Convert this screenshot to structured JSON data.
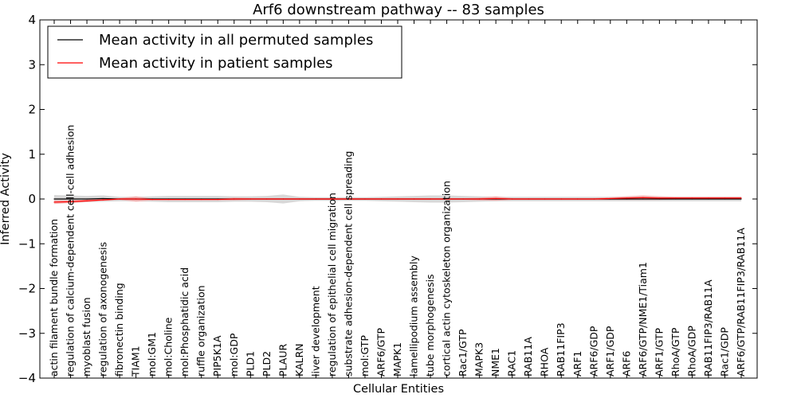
{
  "chart_data": {
    "type": "line",
    "title": "Arf6 downstream pathway -- 83 samples",
    "xlabel": "Cellular Entities",
    "ylabel": "Inferred Activity",
    "ylim": [
      -4,
      4
    ],
    "yticks": [
      4,
      3,
      2,
      1,
      0,
      -1,
      -2,
      -3,
      -4
    ],
    "ytick_labels": [
      "4",
      "3",
      "2",
      "1",
      "0",
      "−1",
      "−2",
      "−3",
      "−4"
    ],
    "grid": false,
    "legend_position": "top-left",
    "categories": [
      "actin filament bundle formation",
      "regulation of calcium-dependent cell-cell adhesion",
      "myoblast fusion",
      "regulation of axonogenesis",
      "fibronectin binding",
      "TIAM1",
      "mol:GM1",
      "mol:Choline",
      "mol:Phosphatidic acid",
      "ruffle organization",
      "PIP5K1A",
      "mol:GDP",
      "PLD1",
      "PLD2",
      "PLAUR",
      "KALRN",
      "liver development",
      "regulation of epithelial cell migration",
      "substrate adhesion-dependent cell spreading",
      "mol:GTP",
      "ARF6/GTP",
      "MAPK1",
      "lamellipodium assembly",
      "tube morphogenesis",
      "cortical actin cytoskeleton organization",
      "Rac1/GTP",
      "MAPK3",
      "NME1",
      "RAC1",
      "RAB11A",
      "RHOA",
      "RAB11FIP3",
      "ARF1",
      "ARF6/GDP",
      "ARF1/GDP",
      "ARF6",
      "ARF6/GTP/NME1/Tiam1",
      "ARF1/GTP",
      "RhoA/GTP",
      "RhoA/GDP",
      "RAB11FIP3/RAB11A",
      "Rac1/GDP",
      "ARF6/GTP/RAB11FIP3/RAB11A"
    ],
    "series": [
      {
        "name": "Mean activity in all permuted samples",
        "color": "#000000",
        "values": [
          0,
          0,
          0,
          0.01,
          0,
          0,
          0,
          0,
          0,
          0,
          0,
          0,
          0,
          0,
          0,
          0,
          0,
          0,
          0,
          0,
          0,
          0,
          0,
          0,
          0,
          0,
          0,
          0,
          0,
          0,
          0,
          0,
          0,
          0,
          0,
          0,
          0,
          0,
          0,
          0,
          0,
          0,
          0
        ],
        "band_halfwidth": [
          0.09,
          0.08,
          0.07,
          0.07,
          0.05,
          0.05,
          0.06,
          0.07,
          0.07,
          0.07,
          0.07,
          0.06,
          0.06,
          0.07,
          0.1,
          0.05,
          0.04,
          0.04,
          0.04,
          0.04,
          0.05,
          0.06,
          0.07,
          0.08,
          0.08,
          0.07,
          0.06,
          0.05,
          0.05,
          0.05,
          0.05,
          0.05,
          0.05,
          0.05,
          0.05,
          0.05,
          0.05,
          0.05,
          0.05,
          0.05,
          0.05,
          0.05,
          0.05
        ],
        "band_color": "#c8c8c8"
      },
      {
        "name": "Mean activity in patient samples",
        "color": "#ff0000",
        "values": [
          -0.07,
          -0.06,
          -0.04,
          -0.02,
          0,
          0,
          -0.01,
          -0.01,
          -0.01,
          -0.01,
          -0.01,
          0,
          0,
          0,
          0,
          0,
          0,
          0,
          0,
          0,
          0,
          0,
          0,
          0,
          0,
          0,
          0,
          0.01,
          0,
          0,
          0,
          0,
          0,
          0,
          0.01,
          0.02,
          0.03,
          0.02,
          0.02,
          0.02,
          0.02,
          0.02,
          0.02
        ],
        "band_halfwidth": [
          0.04,
          0.03,
          0.03,
          0.02,
          0.02,
          0.06,
          0.02,
          0.02,
          0.02,
          0.02,
          0.02,
          0.03,
          0.02,
          0.02,
          0.02,
          0.02,
          0.02,
          0.02,
          0.02,
          0.02,
          0.02,
          0.02,
          0.02,
          0.02,
          0.02,
          0.02,
          0.03,
          0.05,
          0.02,
          0.02,
          0.02,
          0.02,
          0.02,
          0.02,
          0.03,
          0.04,
          0.05,
          0.04,
          0.03,
          0.03,
          0.03,
          0.03,
          0.03
        ],
        "band_color": "#f5a0a0"
      }
    ]
  }
}
